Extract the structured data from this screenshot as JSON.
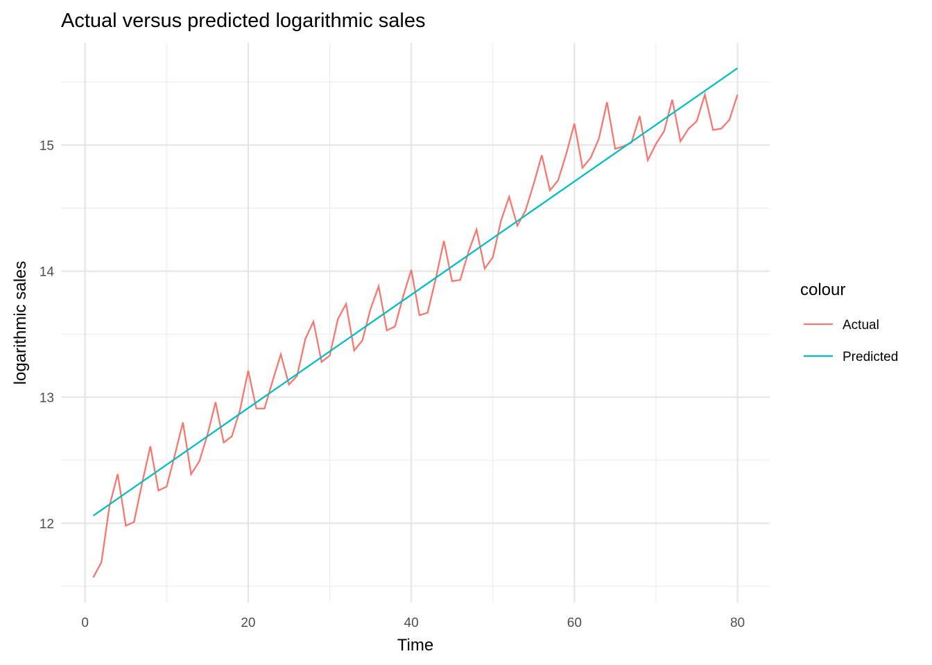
{
  "chart_data": {
    "type": "line",
    "title": "Actual versus predicted logarithmic sales",
    "xlabel": "Time",
    "ylabel": "logarithmic sales",
    "xlim": [
      -2.95,
      83.95
    ],
    "ylim": [
      11.37,
      15.81
    ],
    "x_ticks": [
      0,
      20,
      40,
      60,
      80
    ],
    "x_minor_ticks": [
      10,
      30,
      50,
      70
    ],
    "y_ticks": [
      12,
      13,
      14,
      15
    ],
    "y_minor_ticks": [
      11.5,
      12.5,
      13.5,
      14.5,
      15.5
    ],
    "grid": true,
    "legend": {
      "title": "colour",
      "position": "right"
    },
    "series": [
      {
        "name": "Actual",
        "color": "#F8766D",
        "x_start": 1,
        "values": [
          11.57,
          11.69,
          12.14,
          12.39,
          11.98,
          12.01,
          12.32,
          12.61,
          12.26,
          12.29,
          12.54,
          12.8,
          12.39,
          12.49,
          12.7,
          12.96,
          12.64,
          12.69,
          12.9,
          13.21,
          12.91,
          12.91,
          13.13,
          13.34,
          13.1,
          13.17,
          13.46,
          13.6,
          13.28,
          13.33,
          13.62,
          13.74,
          13.37,
          13.45,
          13.7,
          13.88,
          13.53,
          13.56,
          13.8,
          14.01,
          13.65,
          13.67,
          13.94,
          14.24,
          13.92,
          13.93,
          14.15,
          14.33,
          14.02,
          14.11,
          14.4,
          14.59,
          14.36,
          14.48,
          14.69,
          14.92,
          14.64,
          14.72,
          14.93,
          15.17,
          14.82,
          14.9,
          15.05,
          15.34,
          14.97,
          14.99,
          15.02,
          15.23,
          14.88,
          15.01,
          15.11,
          15.36,
          15.03,
          15.13,
          15.19,
          15.4,
          15.12,
          15.13,
          15.2,
          15.4
        ]
      },
      {
        "name": "Predicted",
        "color": "#00BFC4",
        "x": [
          1,
          80
        ],
        "values": [
          12.06,
          15.61
        ]
      }
    ]
  }
}
